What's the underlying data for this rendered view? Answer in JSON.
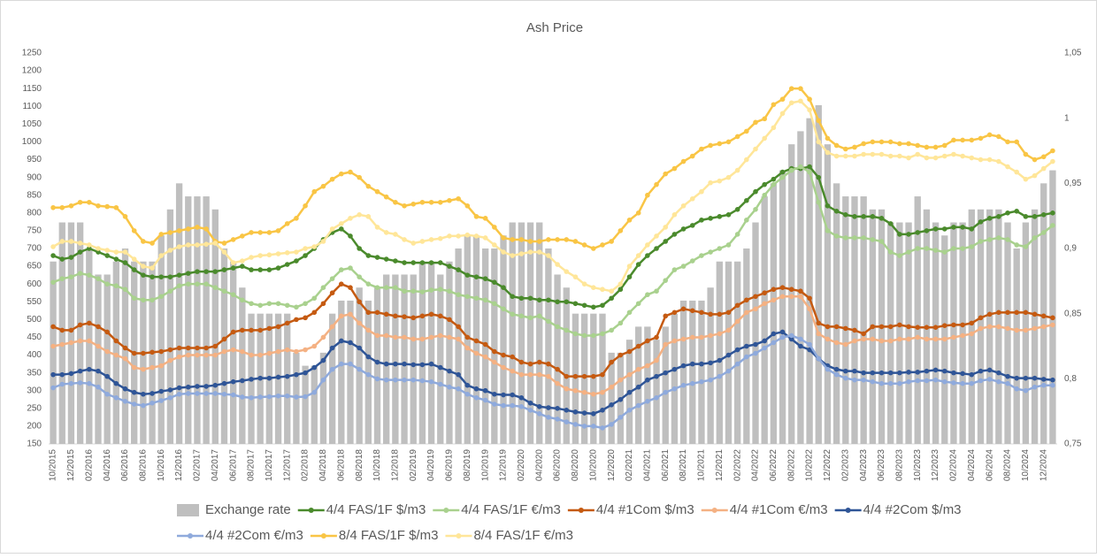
{
  "chart_data": {
    "type": "combo",
    "title": "Ash Price",
    "categories": [
      "10/2015",
      null,
      "12/2015",
      null,
      "02/2016",
      null,
      "04/2016",
      null,
      "06/2016",
      null,
      "08/2016",
      null,
      "10/2016",
      null,
      "12/2016",
      null,
      "02/2017",
      null,
      "04/2017",
      null,
      "06/2017",
      null,
      "08/2017",
      null,
      "10/2017",
      null,
      "12/2017",
      null,
      "02/2018",
      null,
      "04/2018",
      null,
      "06/2018",
      null,
      "08/2018",
      null,
      "10/2018",
      null,
      "12/2018",
      null,
      "02/2019",
      null,
      "04/2019",
      null,
      "06/2019",
      null,
      "08/2019",
      null,
      "10/2019",
      null,
      "12/2019",
      null,
      "02/2020",
      null,
      "04/2020",
      null,
      "06/2020",
      null,
      "08/2020",
      null,
      "10/2020",
      null,
      "12/2020",
      null,
      "02/2021",
      null,
      "04/2021",
      null,
      "06/2021",
      null,
      "08/2021",
      null,
      "10/2021",
      null,
      "12/2021",
      null,
      "02/2022",
      null,
      "04/2022",
      null,
      "06/2022",
      null,
      "08/2022",
      null,
      "10/2022",
      null,
      "12/2022",
      null,
      "02/2023",
      null,
      "04/2023",
      null,
      "06/2023",
      null,
      "08/2023",
      null,
      "10/2023",
      null,
      "12/2023",
      null,
      "02/2024",
      null,
      "04/2024",
      null,
      "06/2024",
      null,
      "08/2024",
      null,
      "10/2024",
      null,
      "12/2024",
      null
    ],
    "ylim": [
      150,
      1250
    ],
    "yticks": [
      150,
      200,
      250,
      300,
      350,
      400,
      450,
      500,
      550,
      600,
      650,
      700,
      750,
      800,
      850,
      900,
      950,
      1000,
      1050,
      1100,
      1150,
      1200,
      1250
    ],
    "y2lim": [
      0.75,
      1.05
    ],
    "y2ticks": [
      {
        "value": 0.75,
        "label": "0,75"
      },
      {
        "value": 0.8,
        "label": "0,8"
      },
      {
        "value": 0.85,
        "label": "0,85"
      },
      {
        "value": 0.9,
        "label": "0,9"
      },
      {
        "value": 0.95,
        "label": "0,95"
      },
      1,
      {
        "value": 1.05,
        "label": "1,05"
      }
    ],
    "legend": "bottom",
    "grid": false,
    "series": [
      {
        "name": "Exchange rate",
        "type": "bar",
        "axis": "y2",
        "color": "#bfbfbf",
        "values": [
          0.89,
          0.92,
          0.92,
          0.92,
          0.9,
          0.88,
          0.88,
          0.89,
          0.9,
          0.89,
          0.89,
          0.89,
          0.91,
          0.93,
          0.95,
          0.94,
          0.94,
          0.94,
          0.93,
          0.9,
          0.89,
          0.87,
          0.85,
          0.85,
          0.85,
          0.85,
          0.85,
          0.82,
          0.81,
          0.81,
          0.82,
          0.85,
          0.86,
          0.86,
          0.87,
          0.86,
          0.87,
          0.88,
          0.88,
          0.88,
          0.88,
          0.89,
          0.89,
          0.88,
          0.89,
          0.9,
          0.91,
          0.91,
          0.9,
          0.9,
          0.91,
          0.92,
          0.92,
          0.92,
          0.92,
          0.9,
          0.88,
          0.87,
          0.85,
          0.85,
          0.85,
          0.85,
          0.82,
          0.82,
          0.83,
          0.84,
          0.84,
          0.83,
          0.84,
          0.85,
          0.86,
          0.86,
          0.86,
          0.87,
          0.89,
          0.89,
          0.89,
          0.9,
          0.92,
          0.94,
          0.95,
          0.96,
          0.98,
          0.99,
          1.0,
          1.01,
          0.98,
          0.95,
          0.94,
          0.94,
          0.94,
          0.93,
          0.93,
          0.92,
          0.92,
          0.92,
          0.94,
          0.93,
          0.92,
          0.91,
          0.92,
          0.92,
          0.93,
          0.93,
          0.93,
          0.93,
          0.92,
          0.9,
          0.92,
          0.93,
          0.95,
          0.96
        ]
      },
      {
        "name": "4/4 FAS/1F $/m3",
        "type": "line",
        "color": "#4a8a2c",
        "values": [
          680,
          670,
          675,
          690,
          700,
          690,
          680,
          670,
          660,
          640,
          625,
          620,
          620,
          620,
          625,
          630,
          635,
          635,
          635,
          640,
          645,
          650,
          640,
          640,
          640,
          645,
          655,
          665,
          680,
          700,
          725,
          745,
          755,
          735,
          700,
          680,
          675,
          670,
          665,
          660,
          660,
          660,
          660,
          660,
          650,
          640,
          625,
          620,
          615,
          605,
          590,
          565,
          560,
          560,
          555,
          555,
          550,
          550,
          545,
          540,
          535,
          540,
          560,
          585,
          620,
          655,
          680,
          700,
          720,
          740,
          755,
          765,
          780,
          785,
          790,
          795,
          810,
          835,
          860,
          880,
          895,
          915,
          925,
          925,
          930,
          900,
          820,
          805,
          795,
          790,
          790,
          790,
          785,
          770,
          740,
          740,
          745,
          750,
          755,
          755,
          760,
          760,
          755,
          775,
          785,
          790,
          800,
          805,
          790,
          790,
          795,
          800
        ]
      },
      {
        "name": "4/4 FAS/1F €/m3",
        "type": "line",
        "color": "#a9d18e",
        "values": [
          605,
          615,
          620,
          630,
          625,
          615,
          600,
          595,
          585,
          560,
          555,
          555,
          565,
          580,
          595,
          600,
          600,
          600,
          590,
          580,
          570,
          555,
          545,
          540,
          545,
          545,
          540,
          535,
          545,
          560,
          590,
          615,
          640,
          645,
          620,
          600,
          590,
          590,
          590,
          580,
          580,
          578,
          583,
          585,
          580,
          570,
          565,
          560,
          555,
          545,
          530,
          515,
          510,
          505,
          510,
          495,
          480,
          470,
          460,
          455,
          455,
          460,
          470,
          490,
          520,
          545,
          570,
          580,
          610,
          640,
          650,
          665,
          680,
          690,
          700,
          710,
          740,
          780,
          810,
          850,
          880,
          900,
          920,
          930,
          915,
          830,
          750,
          735,
          730,
          730,
          730,
          725,
          720,
          690,
          680,
          690,
          700,
          700,
          695,
          690,
          700,
          700,
          705,
          720,
          725,
          730,
          725,
          710,
          705,
          730,
          745,
          765
        ]
      },
      {
        "name": "4/4 #1Com $/m3",
        "type": "line",
        "color": "#c55a11",
        "values": [
          480,
          470,
          470,
          485,
          490,
          480,
          465,
          440,
          420,
          405,
          405,
          408,
          410,
          415,
          420,
          420,
          420,
          420,
          425,
          445,
          465,
          470,
          470,
          470,
          475,
          480,
          490,
          500,
          505,
          520,
          545,
          575,
          600,
          590,
          550,
          520,
          520,
          515,
          510,
          508,
          505,
          510,
          515,
          510,
          500,
          480,
          450,
          440,
          430,
          410,
          400,
          395,
          380,
          375,
          380,
          375,
          360,
          340,
          340,
          340,
          340,
          345,
          380,
          400,
          410,
          425,
          440,
          450,
          510,
          520,
          530,
          525,
          520,
          515,
          515,
          520,
          540,
          555,
          565,
          575,
          585,
          590,
          585,
          580,
          560,
          490,
          480,
          480,
          475,
          470,
          460,
          480,
          480,
          480,
          485,
          480,
          478,
          478,
          478,
          483,
          485,
          485,
          490,
          505,
          515,
          520,
          520,
          520,
          520,
          515,
          510,
          505
        ]
      },
      {
        "name": "4/4 #1Com €/m3",
        "type": "line",
        "color": "#f4b183",
        "values": [
          425,
          430,
          435,
          440,
          440,
          425,
          410,
          400,
          390,
          365,
          360,
          365,
          370,
          385,
          395,
          400,
          400,
          400,
          400,
          410,
          415,
          410,
          400,
          400,
          405,
          410,
          415,
          410,
          415,
          425,
          450,
          480,
          510,
          515,
          490,
          470,
          455,
          455,
          450,
          450,
          445,
          445,
          450,
          455,
          450,
          445,
          420,
          405,
          395,
          380,
          365,
          355,
          345,
          345,
          345,
          340,
          320,
          305,
          300,
          295,
          290,
          295,
          310,
          330,
          345,
          360,
          370,
          385,
          430,
          440,
          445,
          450,
          450,
          455,
          460,
          470,
          495,
          520,
          530,
          545,
          555,
          565,
          565,
          565,
          530,
          460,
          445,
          435,
          430,
          440,
          445,
          445,
          440,
          440,
          445,
          445,
          450,
          445,
          445,
          445,
          450,
          455,
          460,
          475,
          480,
          480,
          475,
          470,
          470,
          475,
          480,
          485
        ]
      },
      {
        "name": "4/4 #2Com $/m3",
        "type": "line",
        "color": "#2f5597",
        "values": [
          345,
          345,
          348,
          355,
          360,
          355,
          340,
          320,
          305,
          295,
          290,
          292,
          298,
          302,
          308,
          310,
          312,
          312,
          315,
          320,
          325,
          328,
          332,
          335,
          335,
          338,
          340,
          345,
          350,
          365,
          385,
          420,
          440,
          435,
          420,
          395,
          380,
          375,
          375,
          375,
          373,
          373,
          375,
          365,
          355,
          345,
          315,
          305,
          300,
          290,
          288,
          288,
          280,
          265,
          255,
          252,
          250,
          245,
          240,
          237,
          235,
          245,
          260,
          275,
          295,
          310,
          330,
          340,
          350,
          360,
          370,
          375,
          375,
          378,
          385,
          400,
          415,
          425,
          430,
          440,
          460,
          465,
          445,
          425,
          415,
          390,
          370,
          360,
          355,
          355,
          350,
          350,
          350,
          350,
          350,
          352,
          352,
          355,
          358,
          355,
          350,
          348,
          345,
          355,
          358,
          350,
          340,
          335,
          335,
          335,
          332,
          330
        ]
      },
      {
        "name": "4/4 #2Com €/m3",
        "type": "line",
        "color": "#8faadc",
        "values": [
          308,
          318,
          320,
          322,
          320,
          310,
          290,
          280,
          270,
          262,
          258,
          265,
          272,
          280,
          290,
          292,
          292,
          292,
          292,
          290,
          288,
          282,
          280,
          282,
          283,
          285,
          285,
          282,
          283,
          295,
          330,
          360,
          375,
          375,
          360,
          345,
          333,
          330,
          330,
          330,
          330,
          328,
          325,
          318,
          310,
          305,
          290,
          280,
          273,
          262,
          258,
          258,
          255,
          245,
          235,
          225,
          220,
          212,
          205,
          200,
          200,
          195,
          205,
          225,
          245,
          258,
          270,
          280,
          295,
          305,
          315,
          320,
          325,
          330,
          340,
          355,
          375,
          395,
          405,
          420,
          435,
          450,
          455,
          445,
          430,
          390,
          360,
          345,
          335,
          330,
          330,
          325,
          320,
          320,
          320,
          325,
          328,
          328,
          330,
          325,
          322,
          320,
          320,
          328,
          332,
          325,
          320,
          305,
          300,
          310,
          315,
          315
        ]
      },
      {
        "name": "8/4 FAS/1F $/m3",
        "type": "line",
        "color": "#f9c545",
        "values": [
          815,
          815,
          820,
          830,
          830,
          820,
          818,
          815,
          790,
          750,
          720,
          715,
          740,
          745,
          750,
          755,
          760,
          755,
          720,
          715,
          725,
          735,
          745,
          745,
          745,
          750,
          770,
          785,
          820,
          860,
          875,
          895,
          910,
          915,
          900,
          875,
          860,
          845,
          830,
          820,
          825,
          830,
          830,
          830,
          835,
          840,
          820,
          790,
          785,
          760,
          730,
          725,
          725,
          720,
          720,
          725,
          725,
          725,
          720,
          710,
          700,
          710,
          720,
          750,
          780,
          800,
          850,
          880,
          910,
          925,
          945,
          960,
          980,
          990,
          995,
          1000,
          1015,
          1030,
          1055,
          1065,
          1105,
          1120,
          1150,
          1150,
          1120,
          1060,
          1010,
          990,
          980,
          985,
          995,
          1000,
          1000,
          1000,
          995,
          995,
          990,
          985,
          985,
          990,
          1005,
          1005,
          1005,
          1010,
          1020,
          1015,
          1000,
          1000,
          965,
          950,
          958,
          975
        ]
      },
      {
        "name": "8/4 FAS/1F €/m3",
        "type": "line",
        "color": "#ffe699",
        "values": [
          705,
          720,
          720,
          715,
          710,
          700,
          695,
          690,
          690,
          670,
          650,
          645,
          680,
          695,
          705,
          710,
          710,
          712,
          715,
          690,
          660,
          665,
          675,
          680,
          682,
          685,
          688,
          690,
          700,
          705,
          720,
          755,
          770,
          785,
          795,
          790,
          760,
          745,
          740,
          725,
          715,
          720,
          725,
          728,
          735,
          735,
          738,
          735,
          730,
          710,
          690,
          680,
          685,
          690,
          690,
          680,
          655,
          635,
          620,
          600,
          590,
          585,
          580,
          600,
          650,
          680,
          710,
          735,
          760,
          795,
          820,
          840,
          860,
          885,
          890,
          900,
          920,
          950,
          980,
          1010,
          1040,
          1080,
          1110,
          1115,
          1090,
          1000,
          970,
          960,
          960,
          960,
          965,
          965,
          965,
          960,
          960,
          955,
          965,
          955,
          955,
          960,
          965,
          960,
          955,
          950,
          950,
          945,
          930,
          915,
          895,
          905,
          925,
          945
        ]
      }
    ]
  }
}
